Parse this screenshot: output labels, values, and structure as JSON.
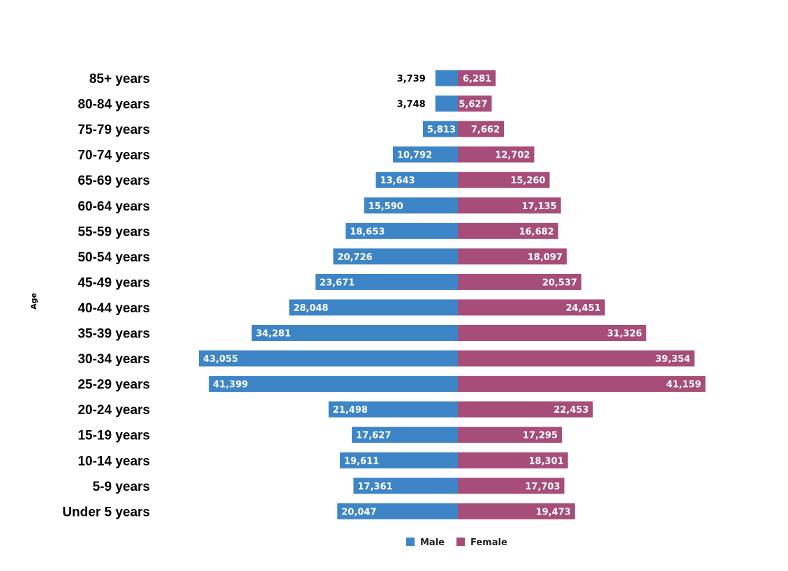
{
  "chart_data": {
    "type": "bar",
    "orientation": "horizontal",
    "subtype": "population-pyramid",
    "title": "",
    "ylabel": "Age",
    "xlabel": "",
    "grid": false,
    "legend_placement": "bottom-center",
    "categories": [
      "85+ years",
      "80-84 years",
      "75-79 years",
      "70-74 years",
      "65-69 years",
      "60-64 years",
      "55-59 years",
      "50-54 years",
      "45-49 years",
      "40-44 years",
      "35-39 years",
      "30-34 years",
      "25-29 years",
      "20-24 years",
      "15-19 years",
      "10-14 years",
      "5-9 years",
      "Under 5 years"
    ],
    "series": [
      {
        "name": "Male",
        "color": "#3d85c6",
        "values": [
          3739,
          3748,
          5813,
          10792,
          13643,
          15590,
          18653,
          20726,
          23671,
          28048,
          34281,
          43055,
          41399,
          21498,
          17627,
          19611,
          17361,
          20047
        ],
        "labels": [
          "3,739",
          "3,748",
          "5,813",
          "10,792",
          "13,643",
          "15,590",
          "18,653",
          "20,726",
          "23,671",
          "28,048",
          "34,281",
          "43,055",
          "41,399",
          "21,498",
          "17,627",
          "19,611",
          "17,361",
          "20,047"
        ]
      },
      {
        "name": "Female",
        "color": "#a64d79",
        "values": [
          6281,
          5627,
          7662,
          12702,
          15260,
          17135,
          16682,
          18097,
          20537,
          24451,
          31326,
          39354,
          41159,
          22453,
          17295,
          18301,
          17703,
          19473
        ],
        "labels": [
          "6,281",
          "5,627",
          "7,662",
          "12,702",
          "15,260",
          "17,135",
          "16,682",
          "18,097",
          "20,537",
          "24,451",
          "31,326",
          "39,354",
          "41,159",
          "22,453",
          "17,295",
          "18,301",
          "17,703",
          "19,473"
        ]
      }
    ]
  }
}
